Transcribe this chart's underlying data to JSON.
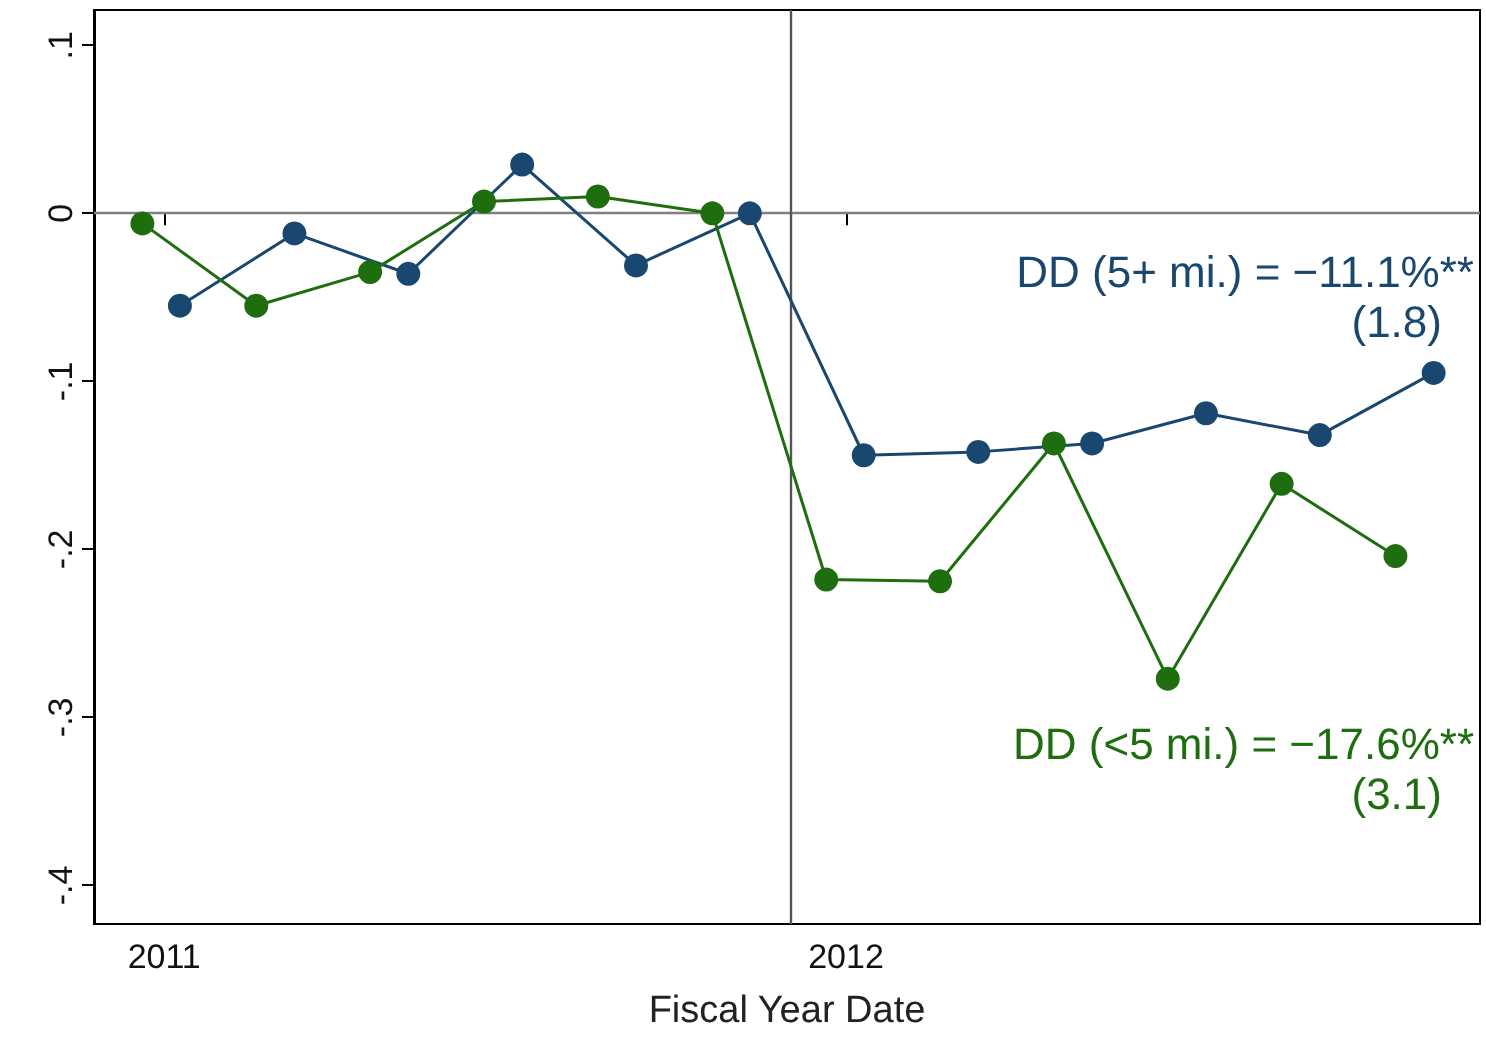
{
  "chart_data": {
    "type": "line",
    "xlabel": "Fiscal Year Date",
    "xlim": [
      2010.897,
      2012.93
    ],
    "xticks": [
      2011,
      2012
    ],
    "ylim": [
      -0.423,
      0.121
    ],
    "yticks": [
      {
        "value": -0.4,
        "label": "-.4"
      },
      {
        "value": -0.3,
        "label": "-.3"
      },
      {
        "value": -0.2,
        "label": "-.2"
      },
      {
        "value": -0.1,
        "label": "-.1"
      },
      0,
      {
        "value": 0.1,
        "label": ".1"
      }
    ],
    "series": [
      {
        "color": "#1a476f",
        "x": [
          2011.023,
          2011.191,
          2011.358,
          2011.525,
          2011.692,
          2011.859,
          2012.026,
          2012.194,
          2012.361,
          2012.528,
          2012.695,
          2012.862
        ],
        "values": [
          -0.055,
          -0.012,
          -0.036,
          0.029,
          -0.031,
          0,
          -0.144,
          -0.142,
          -0.137,
          -0.119,
          -0.132,
          -0.095
        ]
      },
      {
        "color": "#1e6e0f",
        "x": [
          2010.968,
          2011.135,
          2011.302,
          2011.469,
          2011.636,
          2011.804,
          2011.971,
          2012.138,
          2012.305,
          2012.472,
          2012.639,
          2012.806
        ],
        "values": [
          -0.006,
          -0.055,
          -0.035,
          0.007,
          0.01,
          0,
          -0.218,
          -0.219,
          -0.137,
          -0.277,
          -0.161,
          -0.204
        ]
      }
    ],
    "ref_lines": [
      {
        "axis": "y",
        "value": 0,
        "color": "#808080"
      },
      {
        "axis": "x",
        "value": 2011.918,
        "color": "#555555"
      }
    ],
    "annotations": [
      "DD (5+ mi.) = −11.1%**",
      "(1.8)",
      "DD (<5 mi.) = −17.6%**",
      "(3.1)"
    ],
    "marker": "circle",
    "line_style": "solid",
    "grid": false
  }
}
